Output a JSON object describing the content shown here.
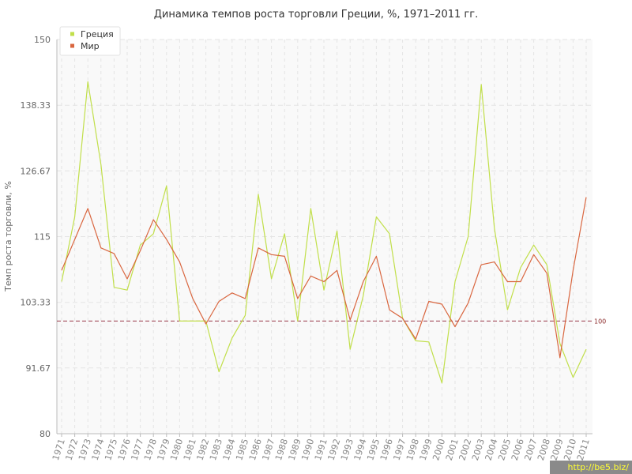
{
  "chart_data": {
    "type": "line",
    "title": "Динамика темпов роста торговли Греции, %, 1971–2011 гг.",
    "ylabel": "Темп роста торговли, %",
    "xlabel": "",
    "ylim": [
      80,
      150
    ],
    "yticks": [
      "80",
      "91.67",
      "103.33",
      "115",
      "126.67",
      "138.33",
      "150"
    ],
    "categories": [
      "1971",
      "1972",
      "1973",
      "1974",
      "1975",
      "1976",
      "1977",
      "1978",
      "1979",
      "1980",
      "1981",
      "1982",
      "1983",
      "1984",
      "1985",
      "1986",
      "1987",
      "1988",
      "1989",
      "1990",
      "1991",
      "1992",
      "1993",
      "1994",
      "1995",
      "1996",
      "1997",
      "1998",
      "1999",
      "2000",
      "2001",
      "2002",
      "2003",
      "2004",
      "2005",
      "2006",
      "2007",
      "2008",
      "2009",
      "2010",
      "2011"
    ],
    "series": [
      {
        "name": "Греция",
        "color": "#c1df4a",
        "values": [
          107.0,
          118.5,
          142.5,
          127.8,
          106.0,
          105.5,
          113.5,
          115.5,
          124.0,
          100.0,
          100.0,
          100.0,
          91.0,
          97.0,
          101.0,
          122.5,
          107.5,
          115.5,
          100.0,
          120.0,
          105.5,
          116.0,
          95.0,
          104.5,
          118.5,
          115.5,
          100.5,
          96.5,
          96.3,
          89.0,
          107.0,
          115.0,
          142.0,
          116.5,
          102.0,
          109.5,
          113.5,
          110.0,
          96.0,
          90.0,
          95.0
        ]
      },
      {
        "name": "Мир",
        "color": "#d9663f",
        "values": [
          109.0,
          114.5,
          120.0,
          113.0,
          112.0,
          107.5,
          112.5,
          118.0,
          114.5,
          110.5,
          104.0,
          99.5,
          103.5,
          105.0,
          104.0,
          113.0,
          111.8,
          111.5,
          104.0,
          108.0,
          107.0,
          109.0,
          100.2,
          107.0,
          111.5,
          102.0,
          100.5,
          96.8,
          103.5,
          103.0,
          99.0,
          103.2,
          110.0,
          110.5,
          107.0,
          107.0,
          111.8,
          108.5,
          93.5,
          109.0,
          122.0
        ]
      }
    ],
    "reference_line": {
      "value": 100,
      "label": "100",
      "color": "#9b3a4a"
    },
    "legend": "top-left",
    "grid": true
  },
  "watermark": "http://be5.biz/"
}
